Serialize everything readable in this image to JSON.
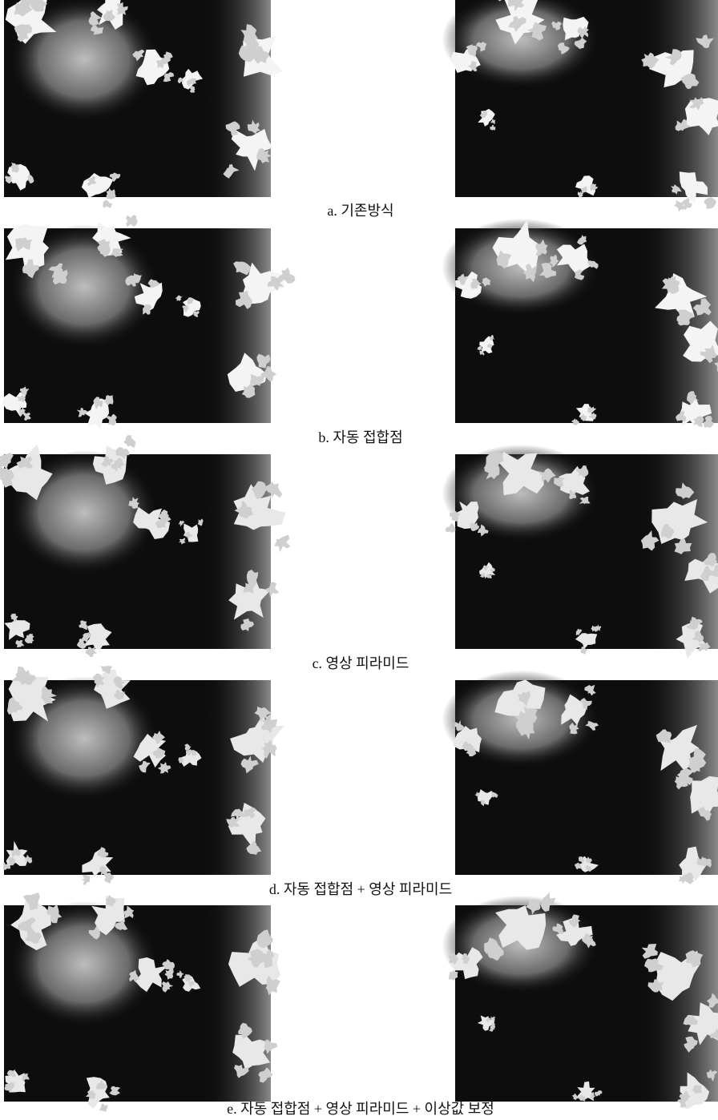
{
  "figures": [
    {
      "caption": "a. 기존방식"
    },
    {
      "caption": "b. 자동 접합점"
    },
    {
      "caption": "c. 영상 피라미드"
    },
    {
      "caption": "d. 자동 접합점 + 영상 피라미드"
    },
    {
      "caption": "e. 자동 접합점 + 영상 피라미드 + 이상값 보정"
    }
  ]
}
